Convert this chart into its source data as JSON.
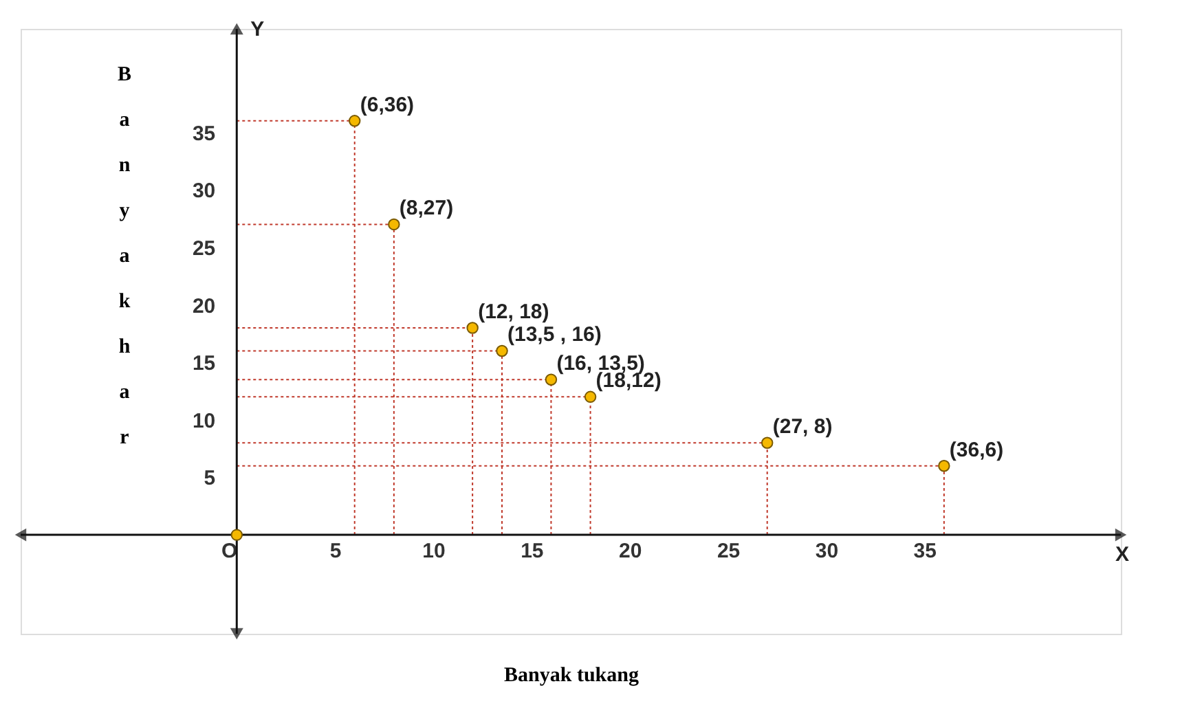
{
  "chart_data": {
    "type": "scatter",
    "xlabel": "Banyak tukang",
    "ylabel": "Banyakhar",
    "annotations": [
      "Y",
      "X",
      {
        "text": "(6,36)",
        "x": 6,
        "y": 36
      },
      {
        "text": "(8,27)",
        "x": 8,
        "y": 27
      },
      {
        "text": "(12, 18)",
        "x": 12,
        "y": 18
      },
      {
        "text": "(13,5 , 16)",
        "x": 13.5,
        "y": 16
      },
      {
        "text": "(16, 13,5)",
        "x": 16,
        "y": 13.5
      },
      {
        "text": "(18,12)",
        "x": 18,
        "y": 12
      },
      {
        "text": "(27, 8)",
        "x": 27,
        "y": 8
      },
      {
        "text": "(36,6)",
        "x": 36,
        "y": 6
      }
    ],
    "x": [
      0,
      6,
      8,
      12,
      13.5,
      16,
      18,
      27,
      36
    ],
    "series": [
      {
        "color": "#f5b800",
        "values": [
          0,
          36,
          27,
          18,
          16,
          13.5,
          12,
          8,
          6
        ]
      }
    ],
    "xlim": [
      -11,
      45
    ],
    "ylim": [
      -8.6,
      44
    ],
    "xticks": [
      {
        "value": 0,
        "label": "O"
      },
      5,
      10,
      15,
      20,
      25,
      30,
      35
    ],
    "yticks": [
      5,
      10,
      15,
      20,
      25,
      30,
      35
    ],
    "grid": false,
    "marker": "circle"
  }
}
